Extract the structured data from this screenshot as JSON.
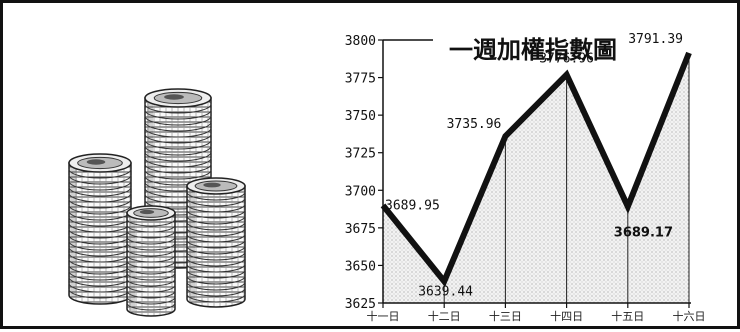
{
  "illustration": {
    "icon": "coin-stacks-icon"
  },
  "chart_data": {
    "type": "line",
    "title": "一週加權指數圖",
    "xlabel": "",
    "ylabel": "",
    "categories": [
      "十一日",
      "十二日",
      "十三日",
      "十四日",
      "十五日",
      "十六日"
    ],
    "values": [
      3689.95,
      3639.44,
      3735.96,
      3776.96,
      3689.17,
      3791.39
    ],
    "data_labels": [
      "3689.95",
      "3639.44",
      "3735.96",
      "3776.96",
      "3689.17",
      "3791.39"
    ],
    "ylim": [
      3625,
      3800
    ],
    "yticks": [
      3625,
      3650,
      3675,
      3700,
      3725,
      3750,
      3775,
      3800
    ],
    "ytick_labels": [
      "3625",
      "3650",
      "3675",
      "3700",
      "3725",
      "3750",
      "3775",
      "3800"
    ],
    "grid": false,
    "colors": {
      "line": "#111111",
      "fill": "#e6e6e6",
      "frame": "#111111"
    }
  }
}
